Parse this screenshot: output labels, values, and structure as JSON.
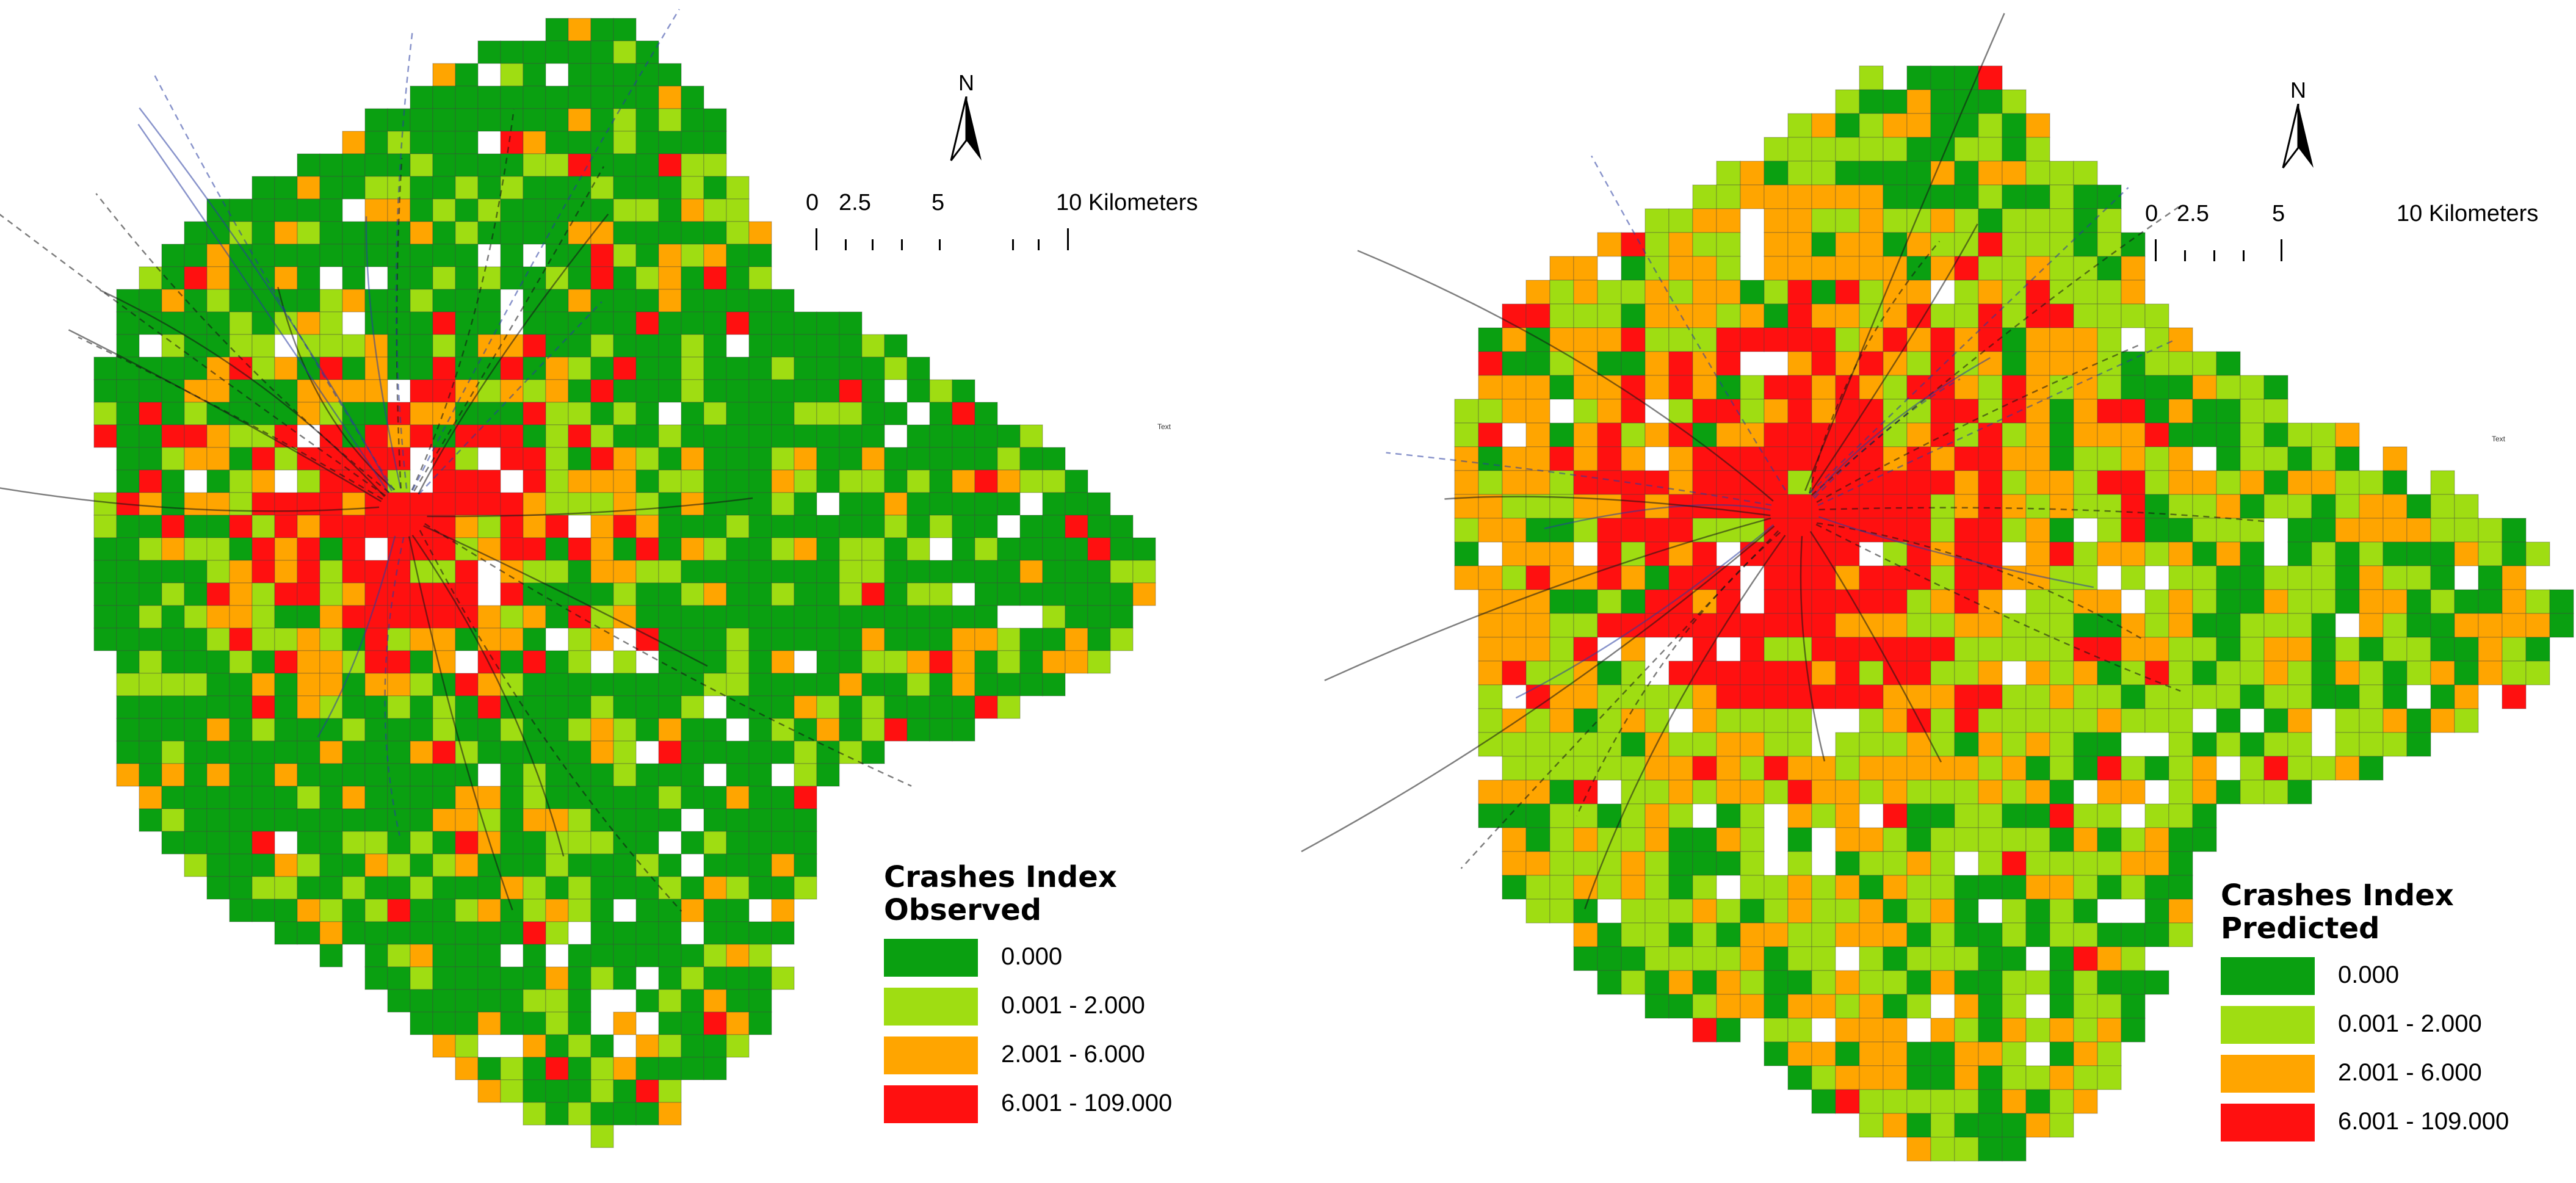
{
  "classes": [
    {
      "range": "0.000",
      "color": "#0aa011"
    },
    {
      "range": "0.001 - 2.000",
      "color": "#9fdd12"
    },
    {
      "range": "2.001 - 6.000",
      "color": "#ffa500"
    },
    {
      "range": "6.001 - 109.000",
      "color": "#ff1010"
    }
  ],
  "maps": [
    {
      "legend_title_line1": "Crashes Index",
      "legend_title_line2": "Observed",
      "north_label": "N",
      "scale_labels": {
        "zero": "0",
        "a": "2.5",
        "b": "5",
        "c": "10 Kilometers"
      },
      "tiny_label": "Text"
    },
    {
      "legend_title_line1": "Crashes Index",
      "legend_title_line2": "Predicted",
      "north_label": "N",
      "scale_labels": {
        "zero": "0",
        "a": "2.5",
        "b": "5",
        "c": "10 Kilometers"
      },
      "tiny_label": "Text"
    }
  ]
}
